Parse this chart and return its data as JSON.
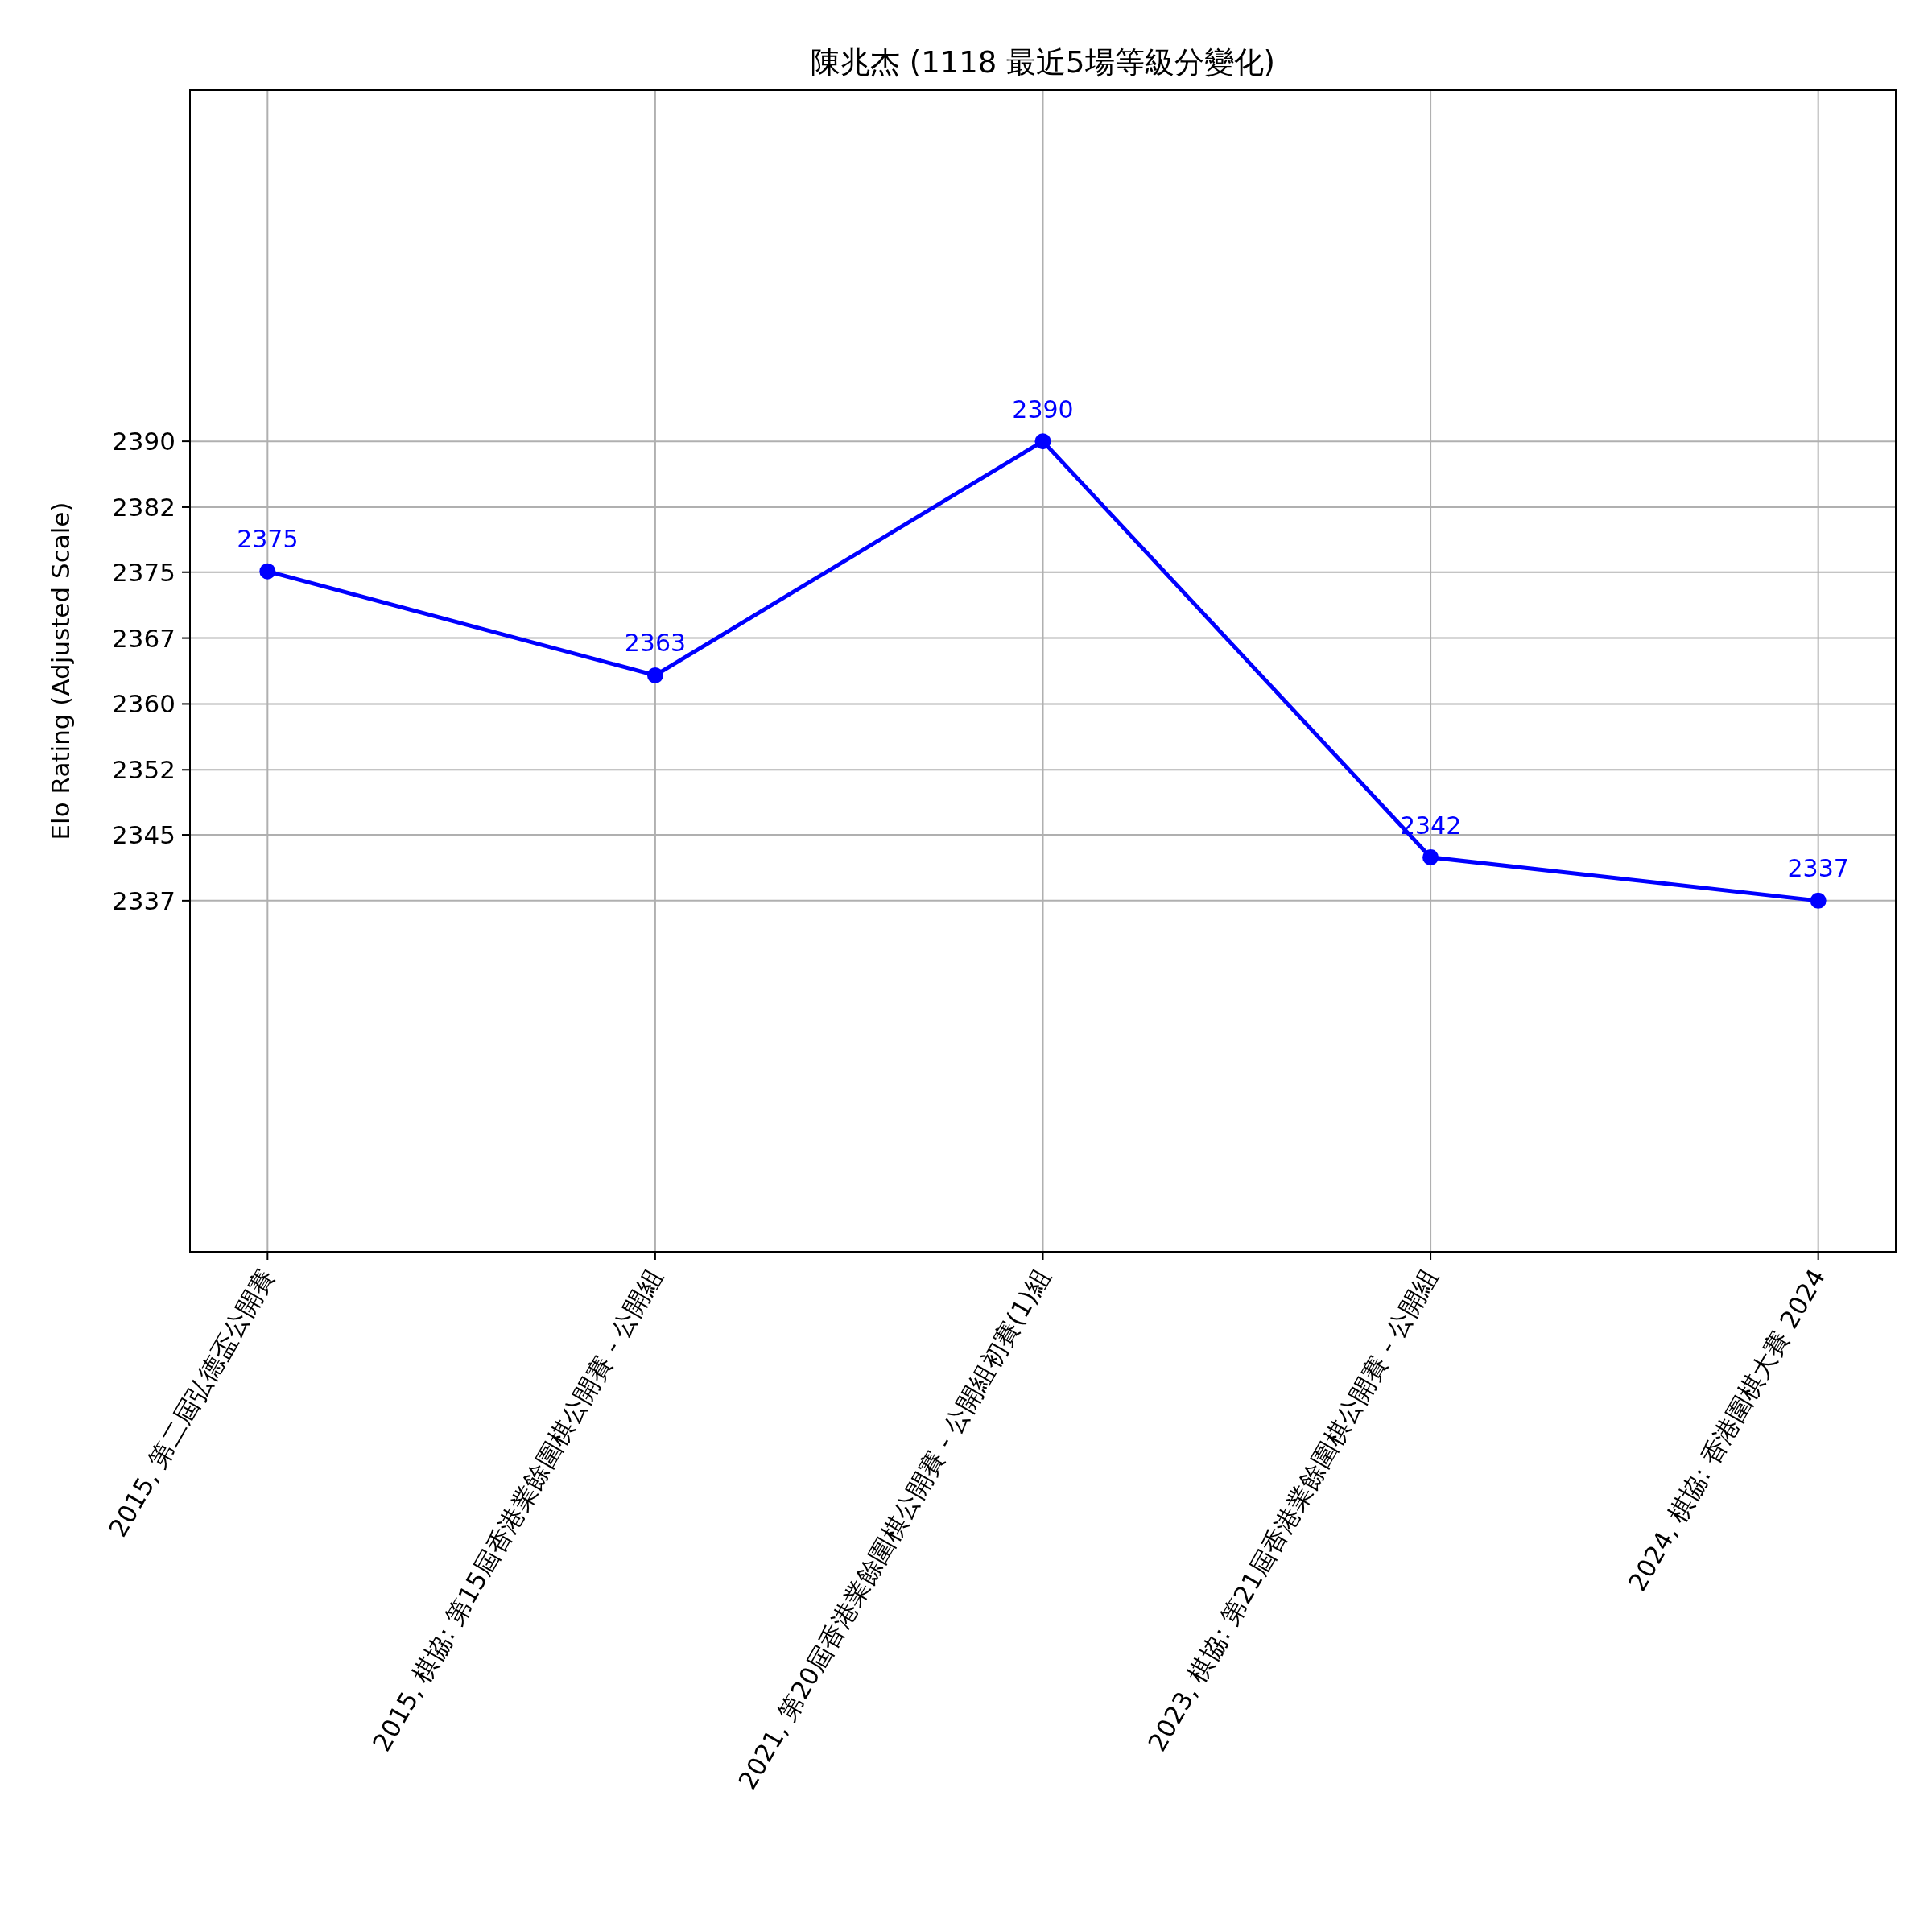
{
  "chart_data": {
    "type": "line",
    "title": "陳兆杰 (1118 最近5場等級分變化)",
    "ylabel": "Elo Rating (Adjusted Scale)",
    "categories": [
      "2015, 第二屆弘德盃公開賽",
      "2015, 棋協: 第15屆香港業餘圍棋公開賽 - 公開組",
      "2021, 第20屆香港業餘圍棋公開賽 - 公開組初賽(1)組",
      "2023, 棋協: 第21屆香港業餘圍棋公開賽 - 公開組",
      "2024, 棋協: 香港圍棋大賽 2024"
    ],
    "series": [
      {
        "color": "#0000ff",
        "values": [
          2375,
          2363,
          2390,
          2342,
          2337
        ]
      }
    ],
    "ylim": [
      2296.5,
      2430.5
    ],
    "yticks": [
      {
        "value": 2337,
        "label": "2337"
      },
      {
        "value": 2344.6,
        "label": "2345"
      },
      {
        "value": 2352.1,
        "label": "2352"
      },
      {
        "value": 2359.7,
        "label": "2360"
      },
      {
        "value": 2367.3,
        "label": "2367"
      },
      {
        "value": 2374.9,
        "label": "2375"
      },
      {
        "value": 2382.4,
        "label": "2382"
      },
      {
        "value": 2390,
        "label": "2390"
      }
    ],
    "grid": true,
    "marker": "circle",
    "line_style": "solid",
    "data_labels": true
  }
}
